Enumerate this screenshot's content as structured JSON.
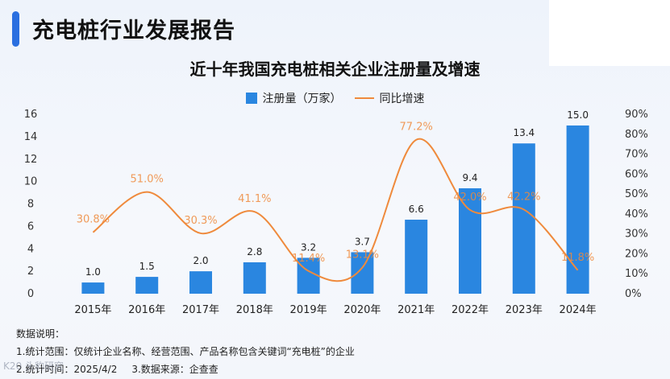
{
  "page_title": "充电桩行业发展报告",
  "watermark": "K20 头豹研究",
  "colors": {
    "bar": "#2a86e0",
    "line": "#ef8a3c",
    "accent": "#2a6fe0"
  },
  "chart_data": {
    "type": "bar",
    "title": "近十年我国充电桩相关企业注册量及增速",
    "categories": [
      "2015年",
      "2016年",
      "2017年",
      "2018年",
      "2019年",
      "2020年",
      "2021年",
      "2022年",
      "2023年",
      "2024年"
    ],
    "series": [
      {
        "name": "注册量（万家）",
        "type": "bar",
        "axis": "left",
        "values": [
          1.0,
          1.5,
          2.0,
          2.8,
          3.2,
          3.7,
          6.6,
          9.4,
          13.4,
          15.0
        ],
        "labels": [
          "1.0",
          "1.5",
          "2.0",
          "2.8",
          "3.2",
          "3.7",
          "6.6",
          "9.4",
          "13.4",
          "15.0"
        ]
      },
      {
        "name": "同比增速",
        "type": "line",
        "axis": "right",
        "values": [
          30.8,
          51.0,
          30.3,
          41.1,
          11.4,
          13.1,
          77.2,
          42.0,
          42.2,
          11.8
        ],
        "labels": [
          "30.8%",
          "51.0%",
          "30.3%",
          "41.1%",
          "11.4%",
          "13.1%",
          "77.2%",
          "42.0%",
          "42.2%",
          "11.8%"
        ]
      }
    ],
    "y_left": {
      "min": 0,
      "max": 16,
      "ticks": [
        "0",
        "2",
        "4",
        "6",
        "8",
        "10",
        "12",
        "14",
        "16"
      ]
    },
    "y_right": {
      "min": 0,
      "max": 90,
      "ticks": [
        "0%",
        "10%",
        "20%",
        "30%",
        "40%",
        "50%",
        "60%",
        "70%",
        "80%",
        "90%"
      ]
    },
    "legend_position": "top-center"
  },
  "notes": {
    "heading": "数据说明：",
    "scope": "1.统计范围：仅统计企业名称、经营范围、产品名称包含关键词“充电桩”的企业",
    "time": "2.统计时间：2025/4/2",
    "source": "3.数据来源：企查查"
  }
}
